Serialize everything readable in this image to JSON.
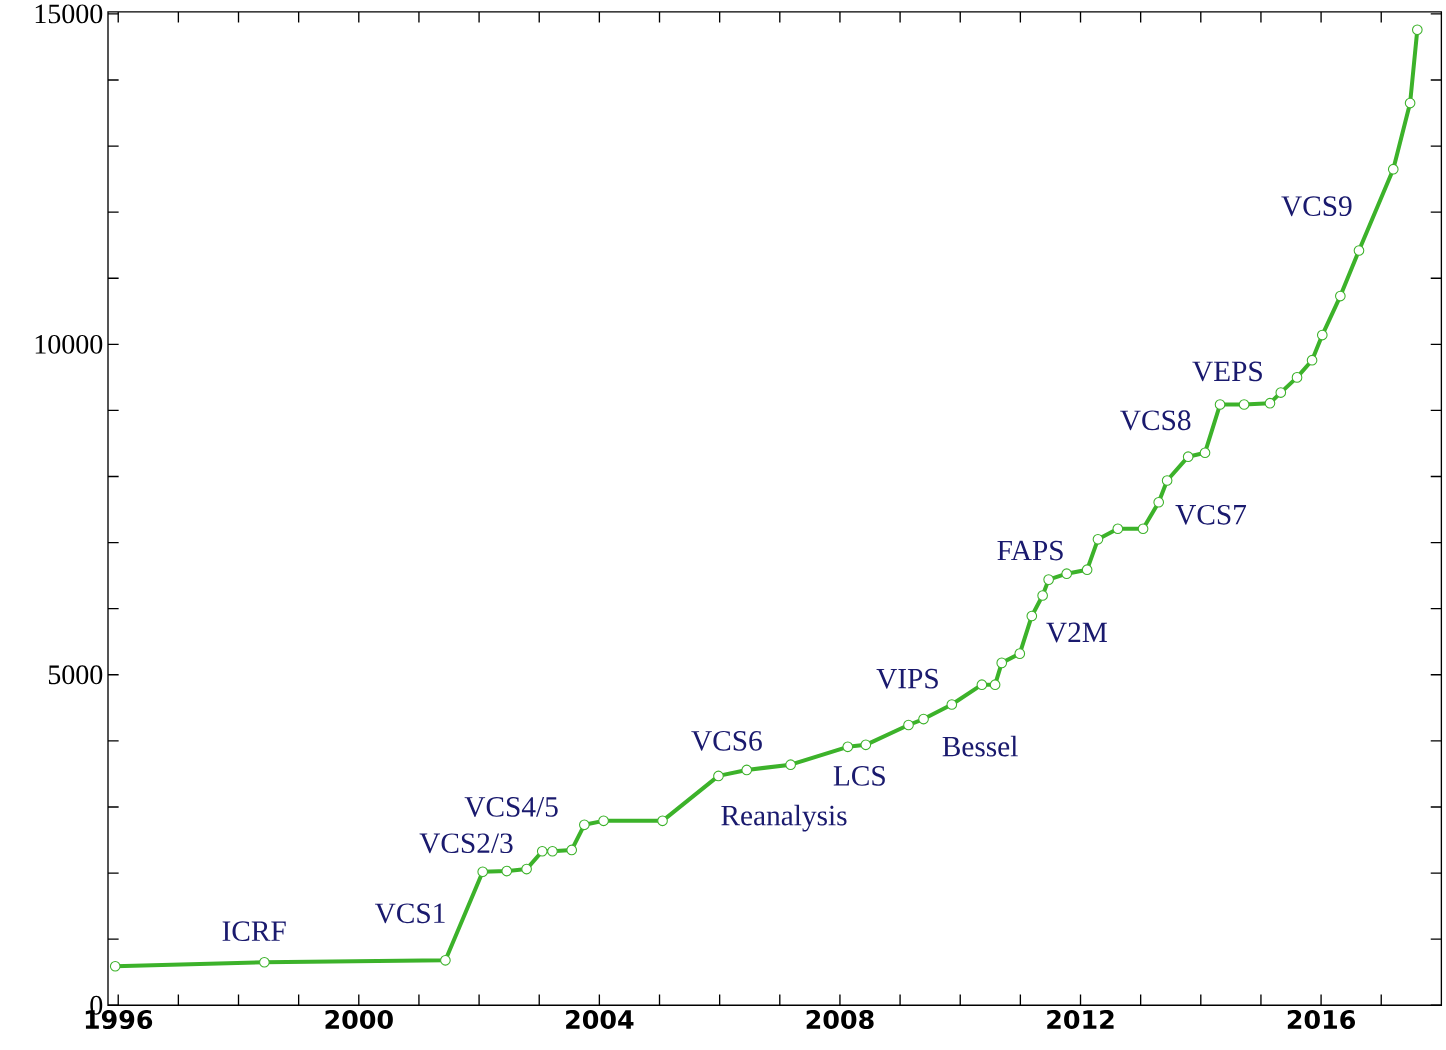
{
  "chart_data": {
    "type": "line",
    "x": [
      1995.95,
      1998.43,
      2001.44,
      2002.06,
      2002.46,
      2002.79,
      2003.05,
      2003.22,
      2003.54,
      2003.75,
      2004.07,
      2005.05,
      2005.98,
      2006.45,
      2007.18,
      2008.13,
      2008.43,
      2009.14,
      2009.39,
      2009.86,
      2010.36,
      2010.58,
      2010.69,
      2010.99,
      2011.19,
      2011.37,
      2011.47,
      2011.77,
      2012.11,
      2012.29,
      2012.62,
      2013.04,
      2013.3,
      2013.44,
      2013.79,
      2014.07,
      2014.32,
      2014.72,
      2015.15,
      2015.33,
      2015.6,
      2015.85,
      2016.02,
      2016.32,
      2016.63,
      2017.2,
      2017.48,
      2017.6
    ],
    "series": [
      {
        "color": "#3cb22a",
        "values": [
          590,
          650,
          680,
          2020,
          2030,
          2060,
          2330,
          2330,
          2350,
          2730,
          2790,
          2790,
          3470,
          3560,
          3640,
          3910,
          3940,
          4240,
          4330,
          4550,
          4850,
          4850,
          5180,
          5320,
          5890,
          6200,
          6440,
          6530,
          6590,
          7050,
          7210,
          7210,
          7610,
          7940,
          8300,
          8360,
          9090,
          9090,
          9110,
          9270,
          9500,
          9760,
          10140,
          10730,
          11420,
          12650,
          13650,
          14760
        ]
      }
    ],
    "marker": "circle",
    "line_style": "solid",
    "grid": false,
    "xlim": [
      1995.83,
      2018.0
    ],
    "ylim": [
      0,
      15030
    ],
    "xticks": [
      {
        "value": 1996,
        "label": "1996"
      },
      {
        "value": 1997,
        "label": null
      },
      {
        "value": 1998,
        "label": null
      },
      {
        "value": 1999,
        "label": null
      },
      {
        "value": 2000,
        "label": "2000"
      },
      {
        "value": 2001,
        "label": null
      },
      {
        "value": 2002,
        "label": null
      },
      {
        "value": 2003,
        "label": null
      },
      {
        "value": 2004,
        "label": "2004"
      },
      {
        "value": 2005,
        "label": null
      },
      {
        "value": 2006,
        "label": null
      },
      {
        "value": 2007,
        "label": null
      },
      {
        "value": 2008,
        "label": "2008"
      },
      {
        "value": 2009,
        "label": null
      },
      {
        "value": 2010,
        "label": null
      },
      {
        "value": 2011,
        "label": null
      },
      {
        "value": 2012,
        "label": "2012"
      },
      {
        "value": 2013,
        "label": null
      },
      {
        "value": 2014,
        "label": null
      },
      {
        "value": 2015,
        "label": null
      },
      {
        "value": 2016,
        "label": "2016"
      },
      {
        "value": 2017,
        "label": null
      }
    ],
    "yticks": [
      0,
      {
        "value": 1000,
        "label": null
      },
      {
        "value": 2000,
        "label": null
      },
      {
        "value": 3000,
        "label": null
      },
      {
        "value": 4000,
        "label": null
      },
      5000,
      {
        "value": 6000,
        "label": null
      },
      {
        "value": 7000,
        "label": null
      },
      {
        "value": 8000,
        "label": null
      },
      {
        "value": 9000,
        "label": null
      },
      10000,
      {
        "value": 11000,
        "label": null
      },
      {
        "value": 12000,
        "label": null
      },
      {
        "value": 13000,
        "label": null
      },
      {
        "value": 14000,
        "label": null
      },
      15000
    ],
    "annotations": [
      "ICRF",
      "VCS1",
      "VCS2/3",
      "VCS4/5",
      "VCS6",
      "Reanalysis",
      "LCS",
      "VIPS",
      "Bessel",
      "V2M",
      "FAPS",
      "VCS7",
      "VCS8",
      "VEPS",
      "VCS9"
    ]
  }
}
